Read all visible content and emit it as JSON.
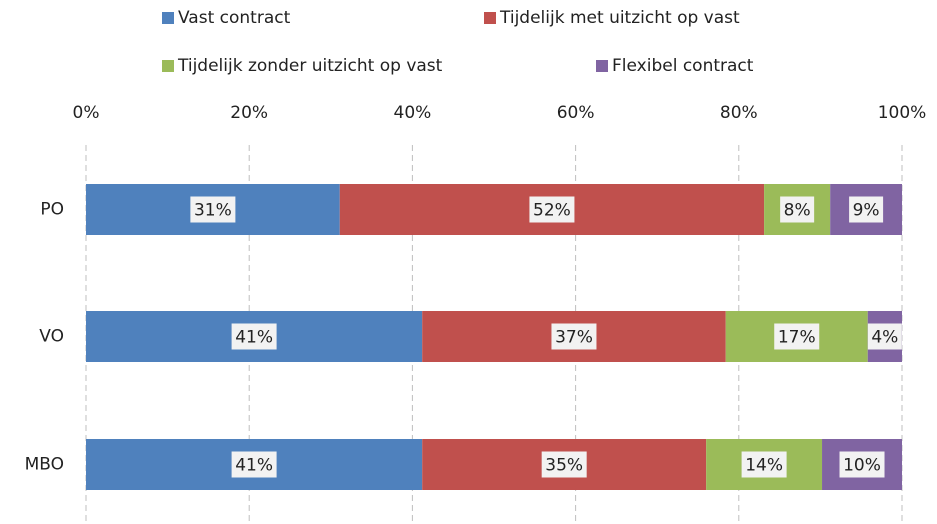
{
  "chart_data": {
    "type": "stacked_barh",
    "categories": [
      "PO",
      "VO",
      "MBO"
    ],
    "series": [
      {
        "name": "Vast contract",
        "color": "#4f81bd",
        "values": [
          31.1,
          41.2,
          41.2
        ],
        "value_labels": [
          "31%",
          "41%",
          "41%"
        ]
      },
      {
        "name": "Tijdelijk met uitzicht op vast",
        "color": "#c0504d",
        "values": [
          52.0,
          37.2,
          34.8
        ],
        "value_labels": [
          "52%",
          "37%",
          "35%"
        ]
      },
      {
        "name": "Tijdelijk zonder uitzicht op vast",
        "color": "#9bbb59",
        "values": [
          8.1,
          17.4,
          14.2
        ],
        "value_labels": [
          "8%",
          "17%",
          "14%"
        ]
      },
      {
        "name": "Flexibel contract",
        "color": "#8064a2",
        "values": [
          8.8,
          4.2,
          9.8
        ],
        "value_labels": [
          "9%",
          "4%",
          "10%"
        ]
      }
    ],
    "xlim": [
      0,
      100
    ],
    "xticks": [
      {
        "value": 0,
        "label": "0%"
      },
      {
        "value": 20,
        "label": "20%"
      },
      {
        "value": 40,
        "label": "40%"
      },
      {
        "value": 60,
        "label": "60%"
      },
      {
        "value": 80,
        "label": "80%"
      },
      {
        "value": 100,
        "label": "100%"
      }
    ],
    "grid": true,
    "legend": "top"
  }
}
